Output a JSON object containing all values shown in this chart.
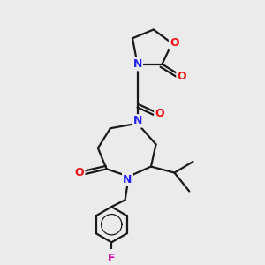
{
  "bg_color": "#ebebeb",
  "bond_color": "#1a1a1a",
  "N_color": "#2020ee",
  "O_color": "#ee1010",
  "F_color": "#cc00aa",
  "line_width": 1.6,
  "fig_width": 3.0,
  "fig_height": 3.0,
  "dpi": 100,
  "xlim": [
    0.0,
    10.0
  ],
  "ylim": [
    0.0,
    10.0
  ]
}
